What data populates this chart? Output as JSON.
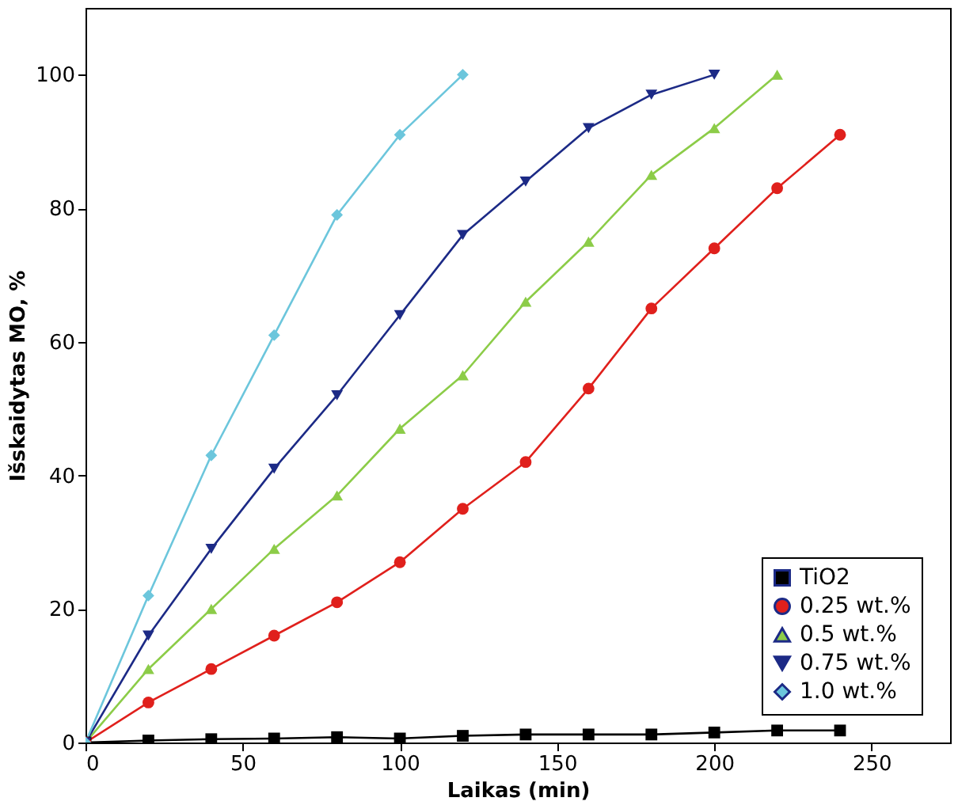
{
  "chart_data": {
    "type": "line",
    "xlabel": "Laikas (min)",
    "ylabel": "Išskaidytas MO, %",
    "xlim": [
      0,
      275
    ],
    "xticks": [
      0,
      50,
      100,
      150,
      200,
      250
    ],
    "ylim": [
      0,
      110
    ],
    "yticks": [
      0,
      20,
      40,
      60,
      80,
      100
    ],
    "grid": false,
    "legend": "bottom right",
    "line_style": "solid",
    "series": [
      {
        "name": "TiO2",
        "color": "#000000",
        "marker": "square",
        "x": [
          0,
          20,
          40,
          60,
          80,
          100,
          120,
          140,
          160,
          180,
          200,
          220,
          240
        ],
        "values": [
          0,
          0.3,
          0.5,
          0.6,
          0.8,
          0.6,
          1,
          1.2,
          1.2,
          1.2,
          1.5,
          1.8,
          1.8
        ]
      },
      {
        "name": "0.25 wt.%",
        "color": "#e0201c",
        "marker": "circle",
        "x": [
          0,
          20,
          40,
          60,
          80,
          100,
          120,
          140,
          160,
          180,
          200,
          220,
          240
        ],
        "values": [
          0,
          6,
          11,
          16,
          21,
          27,
          35,
          42,
          53,
          65,
          74,
          83,
          91
        ]
      },
      {
        "name": "0.5 wt.%",
        "color": "#8ccc48",
        "marker": "triangle",
        "x": [
          0,
          20,
          40,
          60,
          80,
          100,
          120,
          140,
          160,
          180,
          200,
          220
        ],
        "values": [
          0,
          11,
          20,
          29,
          37,
          47,
          55,
          66,
          75,
          85,
          92,
          100
        ]
      },
      {
        "name": "0.75 wt.%",
        "color": "#1c2a86",
        "marker": "triangle-down",
        "x": [
          0,
          20,
          40,
          60,
          80,
          100,
          120,
          140,
          160,
          180,
          200
        ],
        "values": [
          0,
          16,
          29,
          41,
          52,
          64,
          76,
          84,
          92,
          97,
          100
        ]
      },
      {
        "name": "1.0 wt.%",
        "color": "#6cc6dc",
        "marker": "diamond",
        "x": [
          0,
          20,
          40,
          60,
          80,
          100,
          120
        ],
        "values": [
          0,
          22,
          43,
          61,
          79,
          91,
          100
        ]
      }
    ]
  }
}
